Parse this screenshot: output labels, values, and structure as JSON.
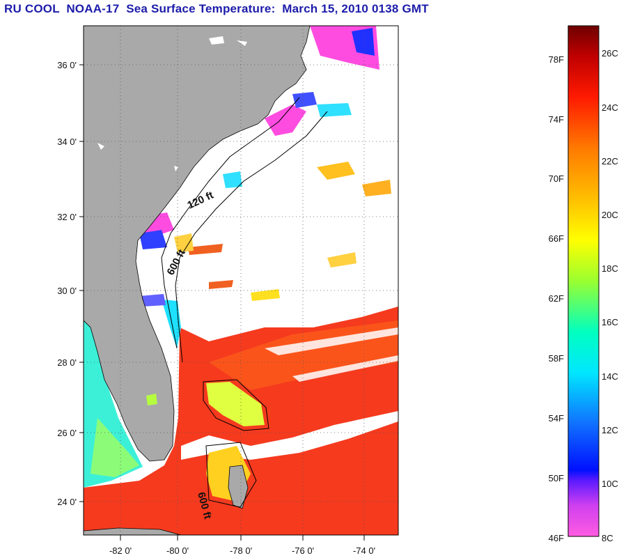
{
  "title": "RU COOL  NOAA-17  Sea Surface Temperature:  March 15, 2010 0138 GMT",
  "map": {
    "lat_ticks": [
      "36 0'",
      "34 0'",
      "32 0'",
      "30 0'",
      "28 0'",
      "26 0'",
      "24 0'"
    ],
    "lon_ticks": [
      "-82 0'",
      "-80 0'",
      "-78 0'",
      "-76 0'",
      "-74 0'"
    ],
    "contour_labels": [
      "120 ft",
      "600 ft",
      "600 ft"
    ]
  },
  "colorbar": {
    "fahrenheit_labels": [
      "78F",
      "74F",
      "70F",
      "66F",
      "62F",
      "58F",
      "54F",
      "50F",
      "46F"
    ],
    "celsius_labels": [
      "26C",
      "24C",
      "22C",
      "20C",
      "18C",
      "16C",
      "14C",
      "12C",
      "10C",
      "8C"
    ]
  },
  "colors": {
    "land": "#a9a9a9",
    "ocean_warm": "#f53a1e",
    "no_data": "#ffffff",
    "title": "#1c1caa"
  }
}
